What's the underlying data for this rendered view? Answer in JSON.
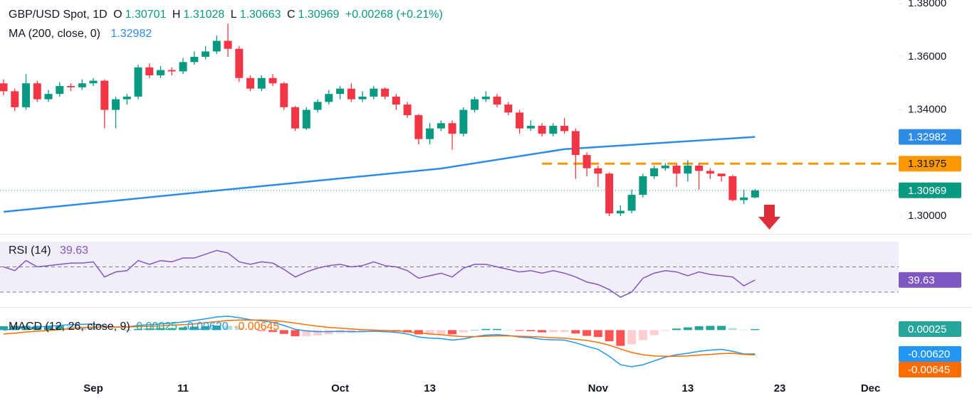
{
  "chart_data": [
    {
      "type": "candlestick",
      "title": "GBP/USD Spot, 1D",
      "ohlc_labels": [
        "O",
        "H",
        "L",
        "C"
      ],
      "change_text": "+0.00268 (+0.21%)",
      "up_color": "#089981",
      "down_color": "#f23645",
      "open": [
        1.35,
        1.347,
        1.341,
        1.35,
        1.344,
        1.346,
        1.349,
        1.3485,
        1.35,
        1.351,
        1.34,
        1.344,
        1.345,
        1.356,
        1.353,
        1.355,
        1.3545,
        1.358,
        1.36,
        1.362,
        1.366,
        1.363,
        1.352,
        1.348,
        1.352,
        1.35,
        1.341,
        1.333,
        1.34,
        1.343,
        1.346,
        1.348,
        1.344,
        1.345,
        1.348,
        1.345,
        1.342,
        1.338,
        1.329,
        1.333,
        1.335,
        1.331,
        1.34,
        1.344,
        1.345,
        1.342,
        1.339,
        1.333,
        1.334,
        1.331,
        1.334,
        1.332,
        1.323,
        1.318,
        1.316,
        1.301,
        1.302,
        1.308,
        1.315,
        1.318,
        1.319,
        1.316,
        1.319,
        1.317,
        1.316,
        1.315,
        1.306,
        1.30701
      ],
      "high": [
        1.3515,
        1.348,
        1.3535,
        1.351,
        1.3475,
        1.3505,
        1.35,
        1.3515,
        1.352,
        1.3515,
        1.345,
        1.346,
        1.357,
        1.3575,
        1.3565,
        1.356,
        1.3595,
        1.362,
        1.364,
        1.368,
        1.3725,
        1.364,
        1.353,
        1.353,
        1.3535,
        1.3505,
        1.3415,
        1.341,
        1.344,
        1.3475,
        1.349,
        1.35,
        1.347,
        1.349,
        1.3485,
        1.346,
        1.343,
        1.3385,
        1.335,
        1.336,
        1.336,
        1.341,
        1.345,
        1.347,
        1.346,
        1.343,
        1.34,
        1.336,
        1.335,
        1.335,
        1.337,
        1.333,
        1.324,
        1.319,
        1.3165,
        1.304,
        1.31,
        1.316,
        1.319,
        1.32,
        1.3195,
        1.321,
        1.32,
        1.318,
        1.316,
        1.3155,
        1.31,
        1.31028
      ],
      "low": [
        1.3455,
        1.3395,
        1.34,
        1.343,
        1.343,
        1.345,
        1.347,
        1.3475,
        1.349,
        1.333,
        1.333,
        1.342,
        1.344,
        1.352,
        1.352,
        1.353,
        1.3535,
        1.357,
        1.359,
        1.361,
        1.36,
        1.3505,
        1.347,
        1.347,
        1.349,
        1.34,
        1.332,
        1.3325,
        1.339,
        1.342,
        1.344,
        1.343,
        1.343,
        1.344,
        1.344,
        1.34,
        1.337,
        1.327,
        1.327,
        1.332,
        1.325,
        1.33,
        1.339,
        1.343,
        1.341,
        1.338,
        1.331,
        1.332,
        1.33,
        1.33,
        1.331,
        1.314,
        1.315,
        1.311,
        1.3,
        1.3,
        1.301,
        1.307,
        1.314,
        1.317,
        1.311,
        1.313,
        1.31,
        1.314,
        1.313,
        1.3055,
        1.3045,
        1.30663
      ],
      "close": [
        1.347,
        1.341,
        1.35,
        1.344,
        1.346,
        1.349,
        1.3485,
        1.35,
        1.351,
        1.34,
        1.344,
        1.345,
        1.356,
        1.353,
        1.355,
        1.3545,
        1.358,
        1.36,
        1.362,
        1.366,
        1.363,
        1.352,
        1.348,
        1.352,
        1.35,
        1.341,
        1.333,
        1.34,
        1.343,
        1.346,
        1.348,
        1.344,
        1.345,
        1.348,
        1.345,
        1.342,
        1.338,
        1.329,
        1.333,
        1.335,
        1.331,
        1.34,
        1.344,
        1.345,
        1.342,
        1.339,
        1.333,
        1.334,
        1.331,
        1.334,
        1.332,
        1.323,
        1.318,
        1.316,
        1.301,
        1.302,
        1.308,
        1.315,
        1.318,
        1.319,
        1.316,
        1.319,
        1.317,
        1.316,
        1.315,
        1.306,
        1.307,
        1.30969
      ],
      "ma": {
        "name": "MA (200, close, 0)",
        "color": "#2e8be6",
        "x": [
          0,
          19,
          39,
          50,
          67
        ],
        "values": [
          1.3016,
          1.3096,
          1.3179,
          1.3252,
          1.32982
        ]
      },
      "level": {
        "value": 1.31975,
        "from": 48,
        "color": "#ff9800"
      },
      "xlim": [
        -0.32,
        79.8
      ],
      "ylim": [
        1.29357,
        1.38139
      ],
      "yticks": [
        {
          "value": 1.3,
          "label": "1.30000"
        },
        {
          "value": 1.34,
          "label": "1.34000"
        },
        {
          "value": 1.36,
          "label": "1.36000"
        },
        {
          "value": 1.38,
          "label": "1.38000"
        }
      ]
    },
    {
      "type": "line",
      "title": "RSI (14)",
      "color": "#7e57c2",
      "values": [
        50,
        47,
        55,
        50,
        51,
        52,
        53,
        53,
        54,
        42,
        46,
        47,
        55,
        52,
        55,
        54,
        57,
        57,
        60,
        63,
        61,
        54,
        52,
        54,
        53,
        48,
        42,
        46,
        49,
        51,
        52,
        50,
        51,
        54,
        51,
        50,
        47,
        41,
        43,
        45,
        42,
        49,
        52,
        52,
        50,
        48,
        46,
        47,
        45,
        47,
        45,
        42,
        38,
        36,
        32,
        26,
        30,
        41,
        45,
        47,
        46,
        43,
        46,
        44,
        43,
        42,
        35,
        39.63
      ],
      "band": [
        30,
        70
      ],
      "levels": [
        30,
        50
      ],
      "ylim": [
        19.3,
        75.6
      ]
    },
    {
      "type": "macd",
      "title": "MACD (12, 26, close, 9)",
      "histogram": {
        "values": [
          0.001,
          0.0011,
          0.0011,
          0.0011,
          0.0011,
          0.0011,
          0.001,
          0.0009,
          0.0008,
          0.0002,
          0.0,
          0.0,
          0.0003,
          0.0004,
          0.0005,
          0.0005,
          0.0007,
          0.0009,
          0.001,
          0.0012,
          0.0011,
          0.0006,
          0.0001,
          -0.0002,
          -0.0005,
          -0.001,
          -0.0016,
          -0.0016,
          -0.0014,
          -0.0011,
          -0.0008,
          -0.0007,
          -0.0005,
          -0.0003,
          -0.0003,
          -0.0004,
          -0.0006,
          -0.0011,
          -0.0011,
          -0.001,
          -0.0011,
          -0.0006,
          0.0,
          0.0003,
          0.0003,
          0.0001,
          -0.0002,
          -0.0003,
          -0.0006,
          -0.0005,
          -0.0005,
          -0.0009,
          -0.0015,
          -0.0018,
          -0.0029,
          -0.0041,
          -0.0037,
          -0.0026,
          -0.0013,
          -0.0002,
          0.0004,
          0.0007,
          0.001,
          0.0011,
          0.0011,
          0.0005,
          0.0001,
          0.00025
        ],
        "colors": [
          "#26a69a",
          "#b2dfdb",
          "#ffcdd2",
          "#ff5252"
        ]
      },
      "macd": {
        "color": "#2196f3",
        "last_label": "-0.00620",
        "values": [
          0.0,
          0.0003,
          0.0006,
          0.0008,
          0.001,
          0.0012,
          0.0014,
          0.0015,
          0.0016,
          0.001,
          0.0008,
          0.0008,
          0.0012,
          0.0014,
          0.0016,
          0.0018,
          0.0021,
          0.0025,
          0.0029,
          0.0034,
          0.0036,
          0.0032,
          0.0027,
          0.0024,
          0.002,
          0.0012,
          0.0002,
          -0.0002,
          -0.0004,
          -0.0004,
          -0.0003,
          -0.0004,
          -0.0004,
          -0.0003,
          -0.0004,
          -0.0006,
          -0.001,
          -0.0018,
          -0.0021,
          -0.0022,
          -0.0026,
          -0.0023,
          -0.0017,
          -0.0013,
          -0.0012,
          -0.0014,
          -0.0018,
          -0.002,
          -0.0024,
          -0.0025,
          -0.0026,
          -0.0033,
          -0.0042,
          -0.005,
          -0.0068,
          -0.009,
          -0.0095,
          -0.009,
          -0.008,
          -0.007,
          -0.0064,
          -0.006,
          -0.0055,
          -0.0052,
          -0.005,
          -0.0055,
          -0.0062,
          -0.0062
        ]
      },
      "signal": {
        "color": "#ff6d00",
        "values": [
          -0.001,
          -0.0008,
          -0.0005,
          -0.0003,
          -0.0001,
          0.0001,
          0.0004,
          0.0006,
          0.0008,
          0.0008,
          0.0008,
          0.0008,
          0.0009,
          0.001,
          0.0011,
          0.0013,
          0.0014,
          0.0016,
          0.0019,
          0.0022,
          0.0025,
          0.0026,
          0.0026,
          0.0026,
          0.0025,
          0.0022,
          0.0018,
          0.0014,
          0.001,
          0.0007,
          0.0005,
          0.0003,
          0.0001,
          0.0,
          -0.0001,
          -0.0002,
          -0.0004,
          -0.0007,
          -0.001,
          -0.0012,
          -0.0015,
          -0.0017,
          -0.0017,
          -0.0016,
          -0.0015,
          -0.0015,
          -0.0016,
          -0.0017,
          -0.0018,
          -0.002,
          -0.0021,
          -0.0024,
          -0.0027,
          -0.0032,
          -0.0039,
          -0.0049,
          -0.0058,
          -0.0064,
          -0.0067,
          -0.0068,
          -0.0068,
          -0.0067,
          -0.0065,
          -0.0063,
          -0.0061,
          -0.006,
          -0.0063,
          -0.00645
        ]
      },
      "ylim": [
        -0.01025,
        0.00579
      ],
      "xticks": [
        {
          "value": 8,
          "label": "Sep"
        },
        {
          "value": 16,
          "label": "11"
        },
        {
          "value": 30,
          "label": "Oct"
        },
        {
          "value": 38,
          "label": "13"
        },
        {
          "value": 53,
          "label": "Nov"
        },
        {
          "value": 61,
          "label": "13"
        },
        {
          "value": 69.2,
          "label": "23"
        },
        {
          "value": 77.3,
          "label": "Dec"
        }
      ]
    }
  ]
}
